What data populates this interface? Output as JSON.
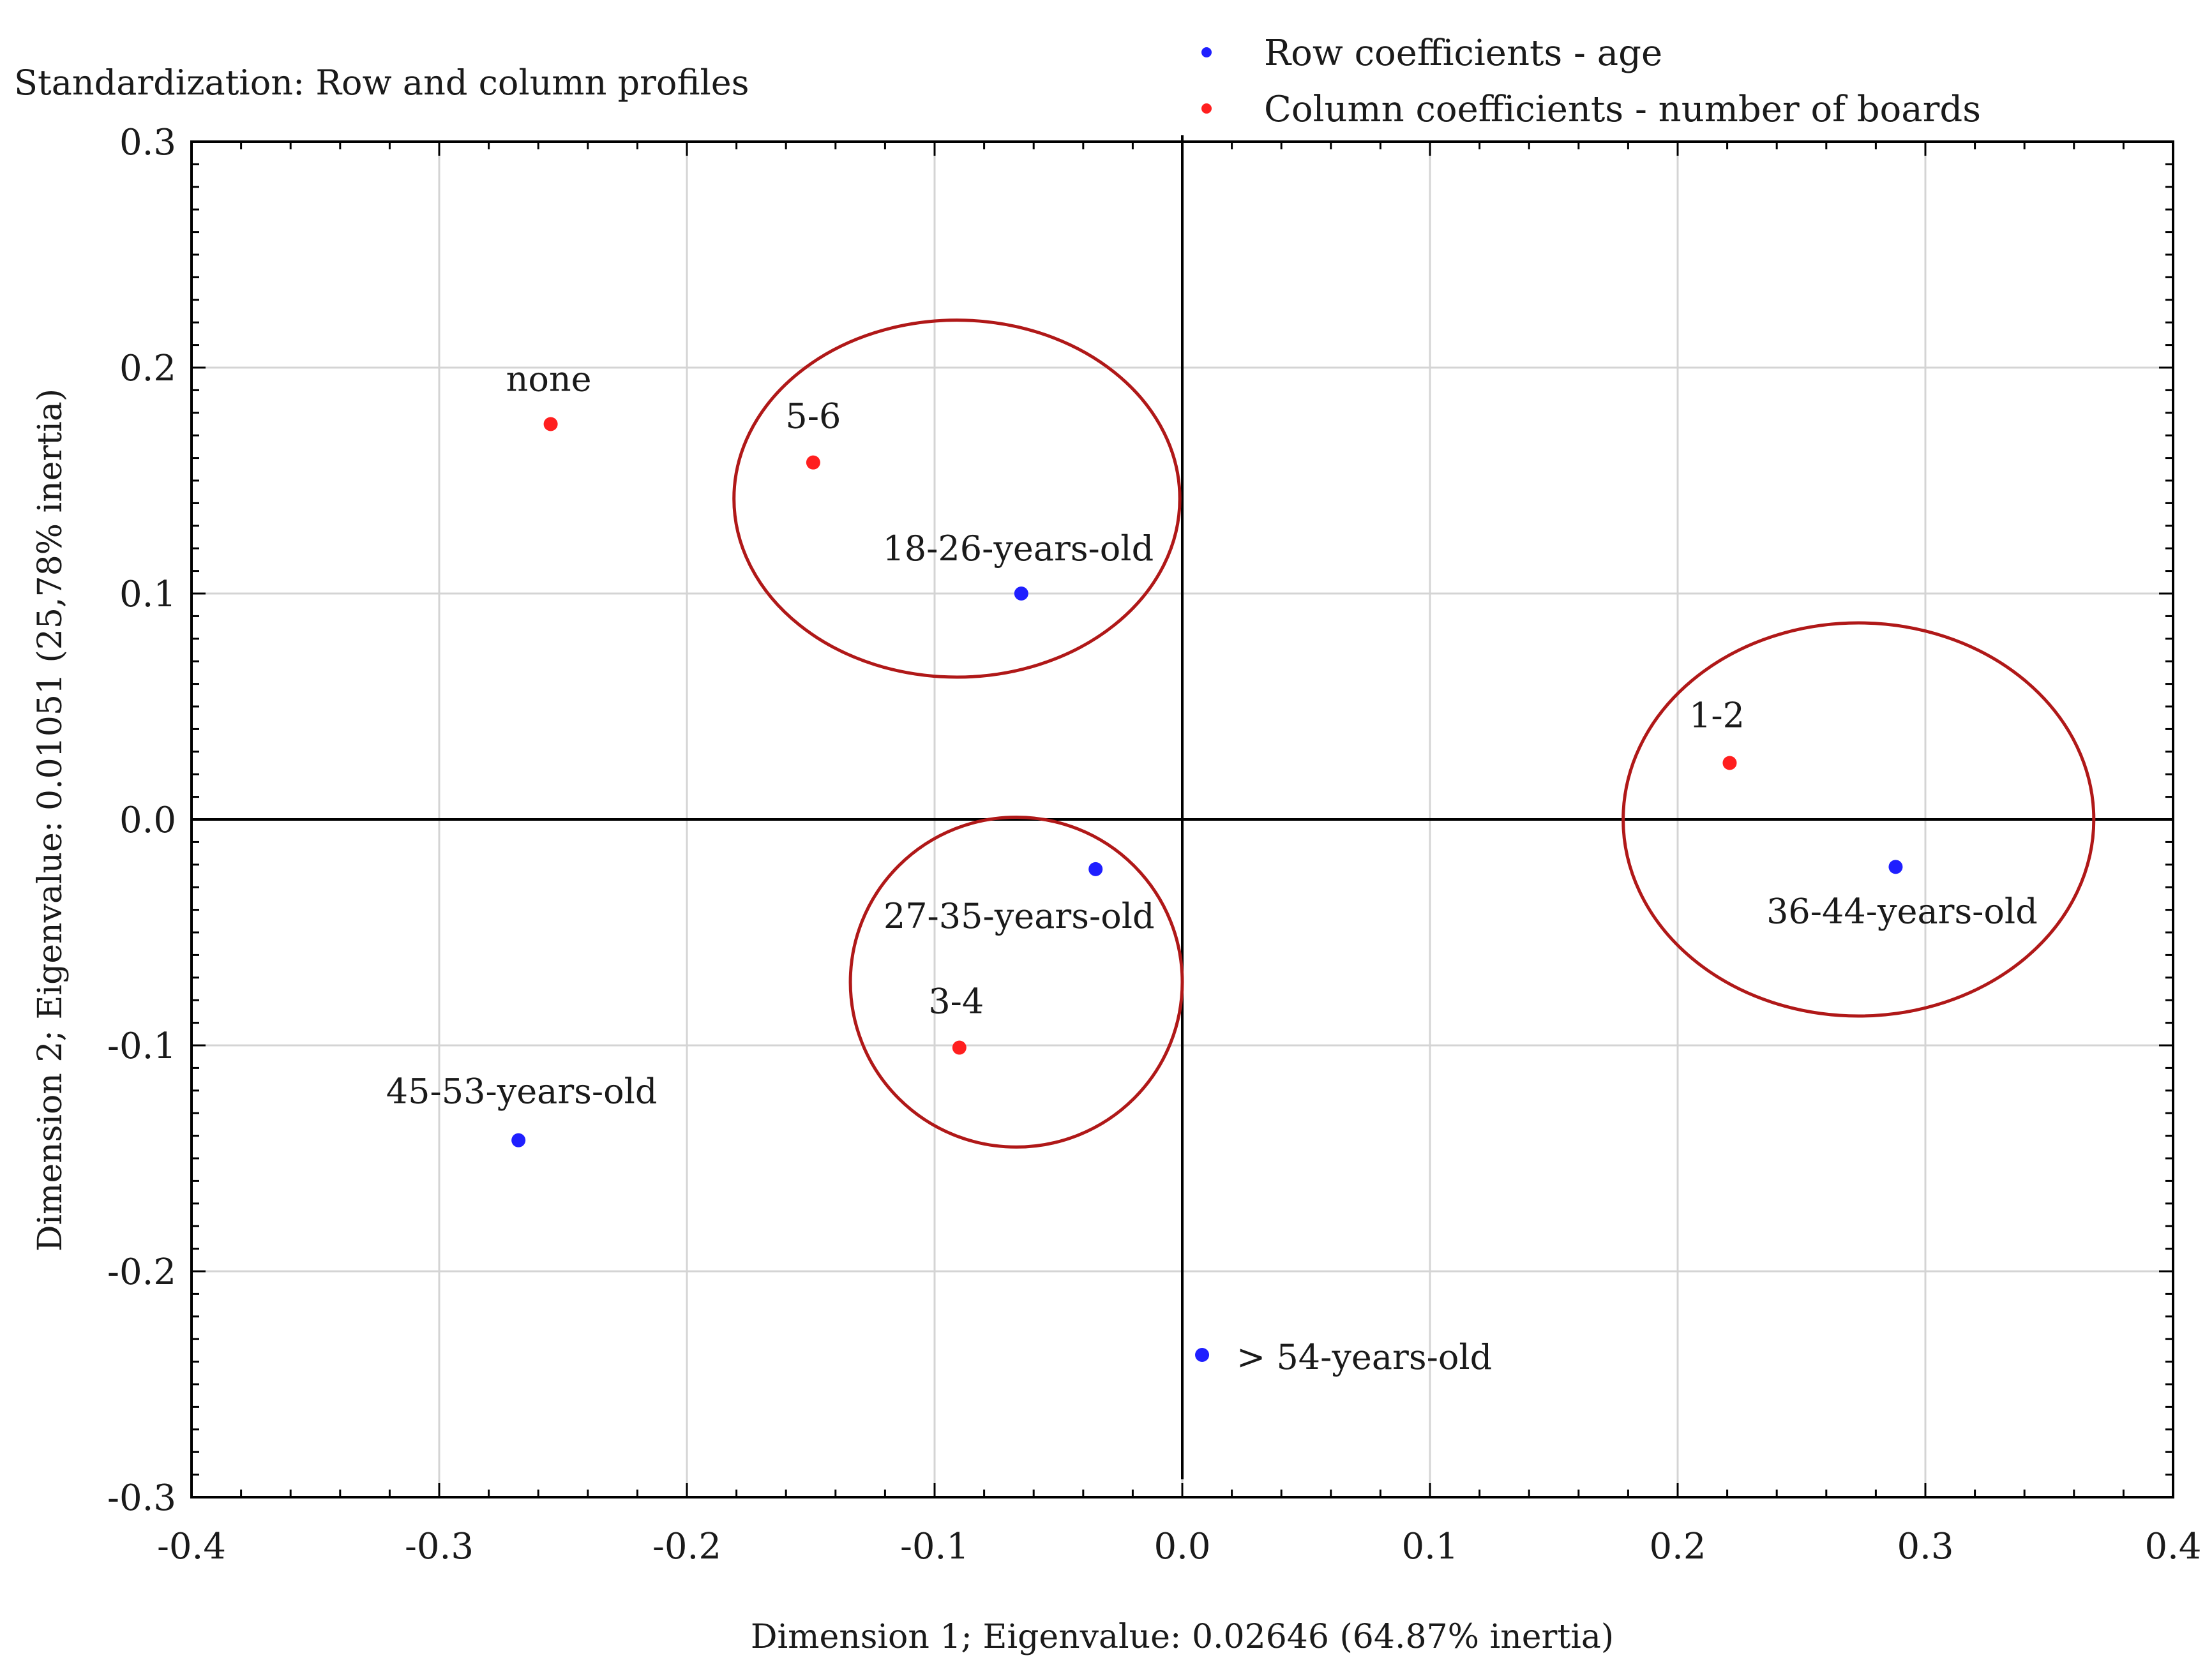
{
  "chart_data": {
    "type": "scatter",
    "title": "Standardization: Row and column profiles",
    "xlabel": "Dimension 1; Eigenvalue: 0.02646 (64.87% inertia)",
    "ylabel": "Dimension 2; Eigenvalue: 0.01051 (25,78% inertia)",
    "xlim": [
      -0.4,
      0.4
    ],
    "ylim": [
      -0.3,
      0.3
    ],
    "xticks": [
      "-0.4",
      "-0.3",
      "-0.2",
      "-0.1",
      "0.0",
      "0.1",
      "0.2",
      "0.3",
      "0.4"
    ],
    "yticks": [
      "0.3",
      "0.2",
      "0.1",
      "0.0",
      "-0.1",
      "-0.2",
      "-0.3"
    ],
    "grid": true,
    "legend_position": "top-right",
    "series": [
      {
        "name": "Row coefficients - age",
        "color": "#1f1fff",
        "points": [
          {
            "label": "18-26-years-old",
            "x": -0.065,
            "y": 0.1
          },
          {
            "label": "27-35-years-old",
            "x": -0.035,
            "y": -0.022
          },
          {
            "label": "36-44-years-old",
            "x": 0.288,
            "y": -0.021
          },
          {
            "label": "45-53-years-old",
            "x": -0.268,
            "y": -0.142
          },
          {
            "label": "> 54-years-old",
            "x": 0.008,
            "y": -0.237
          }
        ]
      },
      {
        "name": "Column coefficients - number of boards",
        "color": "#ff1f1f",
        "points": [
          {
            "label": "none",
            "x": -0.255,
            "y": 0.175
          },
          {
            "label": "5-6",
            "x": -0.149,
            "y": 0.158
          },
          {
            "label": "1-2",
            "x": 0.221,
            "y": 0.025
          },
          {
            "label": "3-4",
            "x": -0.09,
            "y": -0.101
          }
        ]
      }
    ],
    "annotations": [
      {
        "type": "ellipse",
        "cx": -0.091,
        "cy": 0.142,
        "rx": 0.09,
        "ry": 0.079
      },
      {
        "type": "ellipse",
        "cx": -0.067,
        "cy": -0.072,
        "rx": 0.067,
        "ry": 0.073
      },
      {
        "type": "ellipse",
        "cx": 0.273,
        "cy": 0.0,
        "rx": 0.095,
        "ry": 0.087
      }
    ],
    "reference_lines": {
      "x": 0.0,
      "y": 0.0
    },
    "annotation_color": "#b01818"
  }
}
